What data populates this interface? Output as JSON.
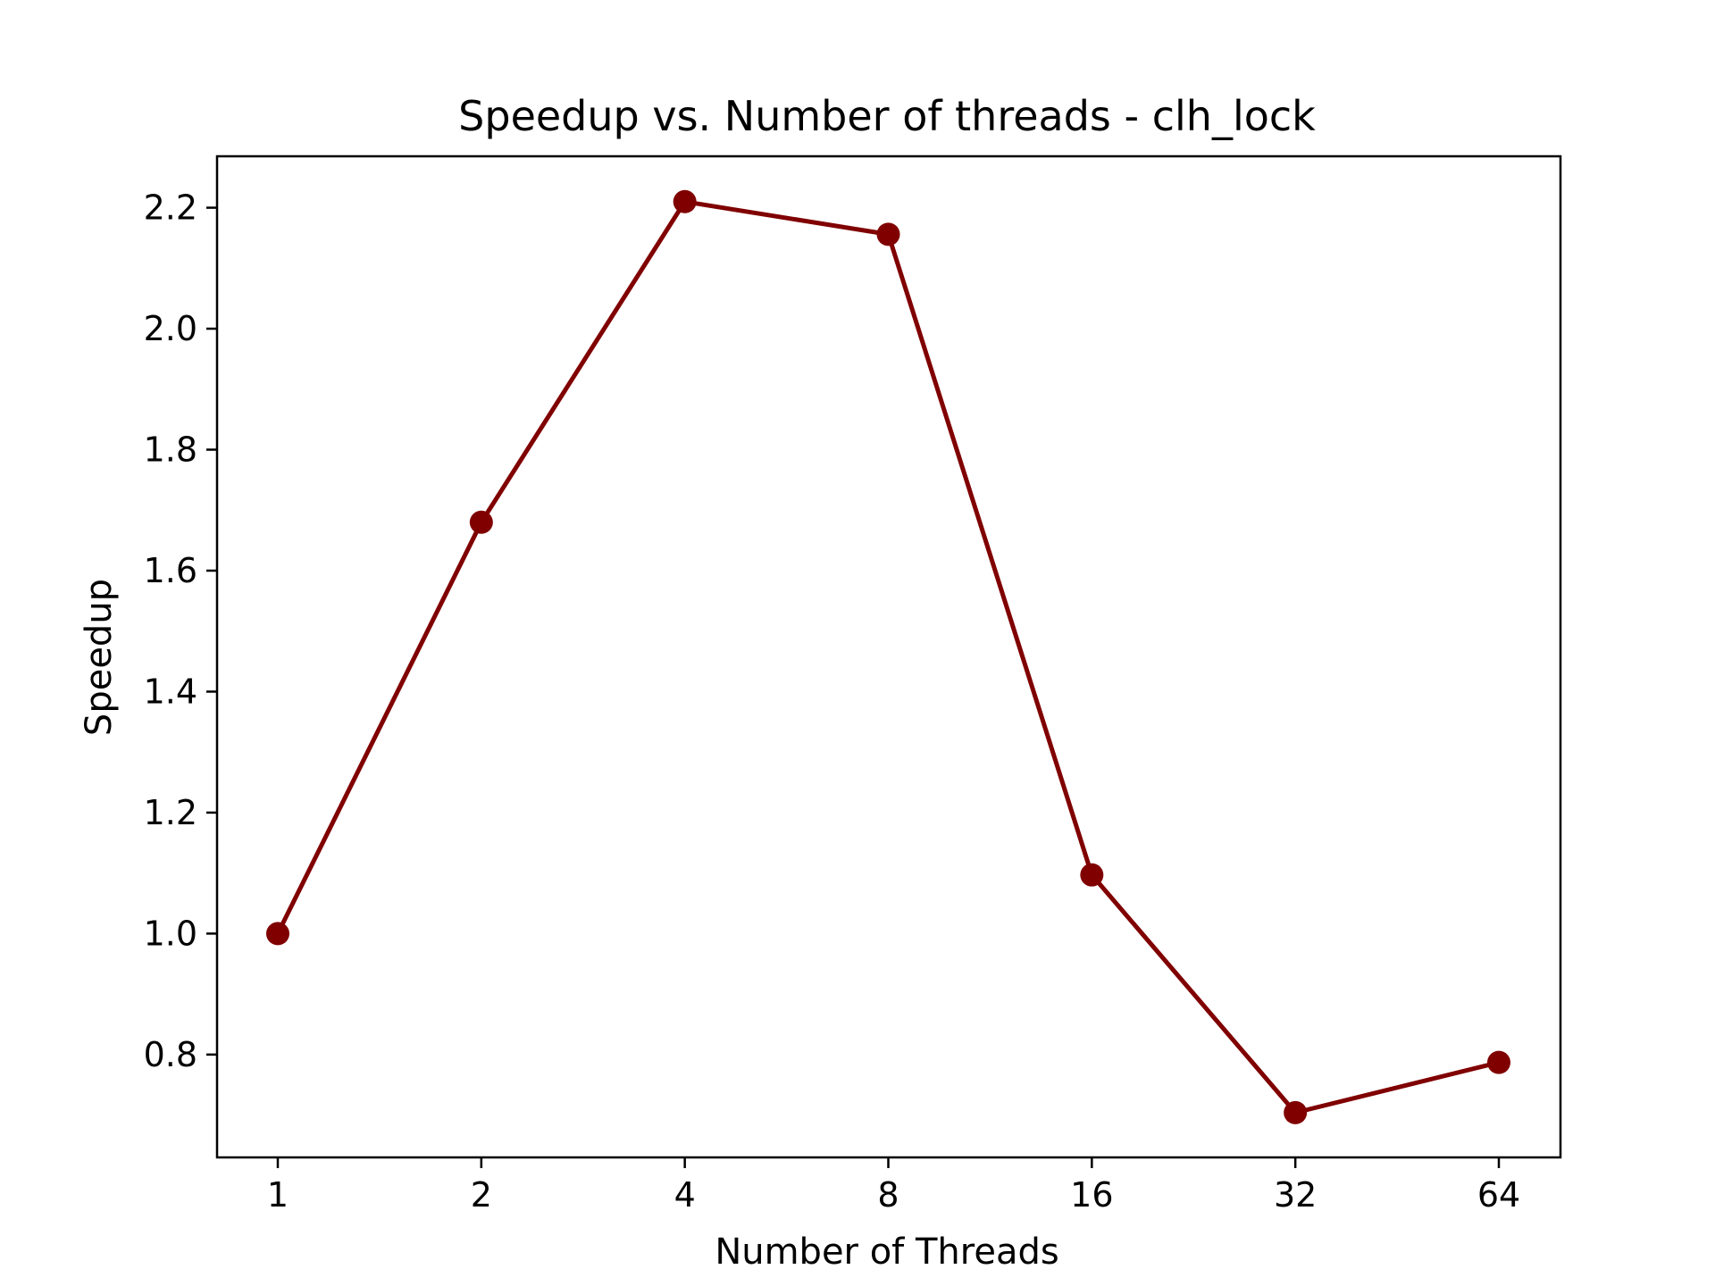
{
  "chart_data": {
    "type": "line",
    "title": "Speedup vs. Number of threads - clh_lock",
    "xlabel": "Number of Threads",
    "ylabel": "Speedup",
    "x": [
      "1",
      "2",
      "4",
      "8",
      "16",
      "32",
      "64"
    ],
    "series": [
      {
        "values": [
          1.0,
          1.68,
          2.21,
          2.156,
          1.097,
          0.704,
          0.787
        ],
        "color": "#800000",
        "marker": "circle"
      }
    ],
    "ylim": [
      0.63,
      2.285
    ],
    "yticks": [
      "0.8",
      "1.0",
      "1.2",
      "1.4",
      "1.6",
      "1.8",
      "2.0",
      "2.2"
    ],
    "xscale": "categorical",
    "grid": false,
    "legend": false
  }
}
